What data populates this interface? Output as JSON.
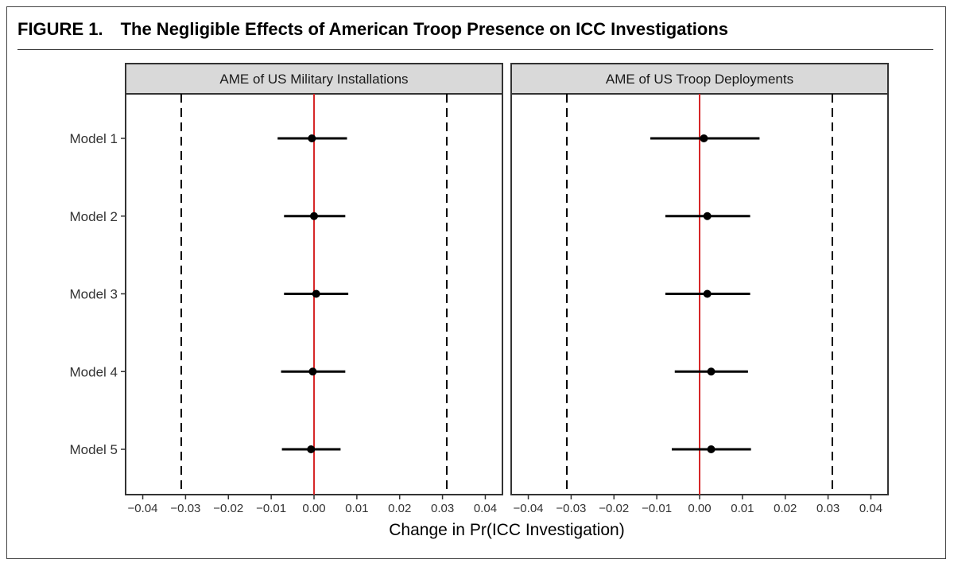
{
  "figure": {
    "label": "FIGURE 1.",
    "title": "The Negligible Effects of American Troop Presence on ICC Investigations"
  },
  "colors": {
    "reference_line": "#d62728",
    "strip_fill": "#d9d9d9",
    "point": "#000000"
  },
  "chart_data": {
    "type": "scatter",
    "subtype": "coefficient-plot-with-intervals",
    "xlabel": "Change in Pr(ICC Investigation)",
    "xlim": [
      -0.044,
      0.044
    ],
    "x_ticks": [
      -0.04,
      -0.03,
      -0.02,
      -0.01,
      0.0,
      0.01,
      0.02,
      0.03,
      0.04
    ],
    "x_tick_labels": [
      "−0.04",
      "−0.03",
      "−0.02",
      "−0.01",
      "0.00",
      "0.01",
      "0.02",
      "0.03",
      "0.04"
    ],
    "models": [
      "Model 1",
      "Model 2",
      "Model 3",
      "Model 4",
      "Model 5"
    ],
    "reference_line": 0,
    "dashed_lines": [
      -0.031,
      0.031
    ],
    "panels": [
      {
        "title": "AME of US Military Installations",
        "points": [
          {
            "model": "Model 1",
            "estimate": -0.0005,
            "lower": -0.0085,
            "upper": 0.0077
          },
          {
            "model": "Model 2",
            "estimate": 0.0,
            "lower": -0.007,
            "upper": 0.0073
          },
          {
            "model": "Model 3",
            "estimate": 0.0005,
            "lower": -0.007,
            "upper": 0.008
          },
          {
            "model": "Model 4",
            "estimate": -0.0003,
            "lower": -0.0077,
            "upper": 0.0073
          },
          {
            "model": "Model 5",
            "estimate": -0.0007,
            "lower": -0.0075,
            "upper": 0.0062
          }
        ]
      },
      {
        "title": "AME of US Troop Deployments",
        "points": [
          {
            "model": "Model 1",
            "estimate": 0.001,
            "lower": -0.0115,
            "upper": 0.014
          },
          {
            "model": "Model 2",
            "estimate": 0.0018,
            "lower": -0.008,
            "upper": 0.0118
          },
          {
            "model": "Model 3",
            "estimate": 0.0018,
            "lower": -0.008,
            "upper": 0.0118
          },
          {
            "model": "Model 4",
            "estimate": 0.0027,
            "lower": -0.0058,
            "upper": 0.0113
          },
          {
            "model": "Model 5",
            "estimate": 0.0027,
            "lower": -0.0065,
            "upper": 0.012
          }
        ]
      }
    ]
  }
}
